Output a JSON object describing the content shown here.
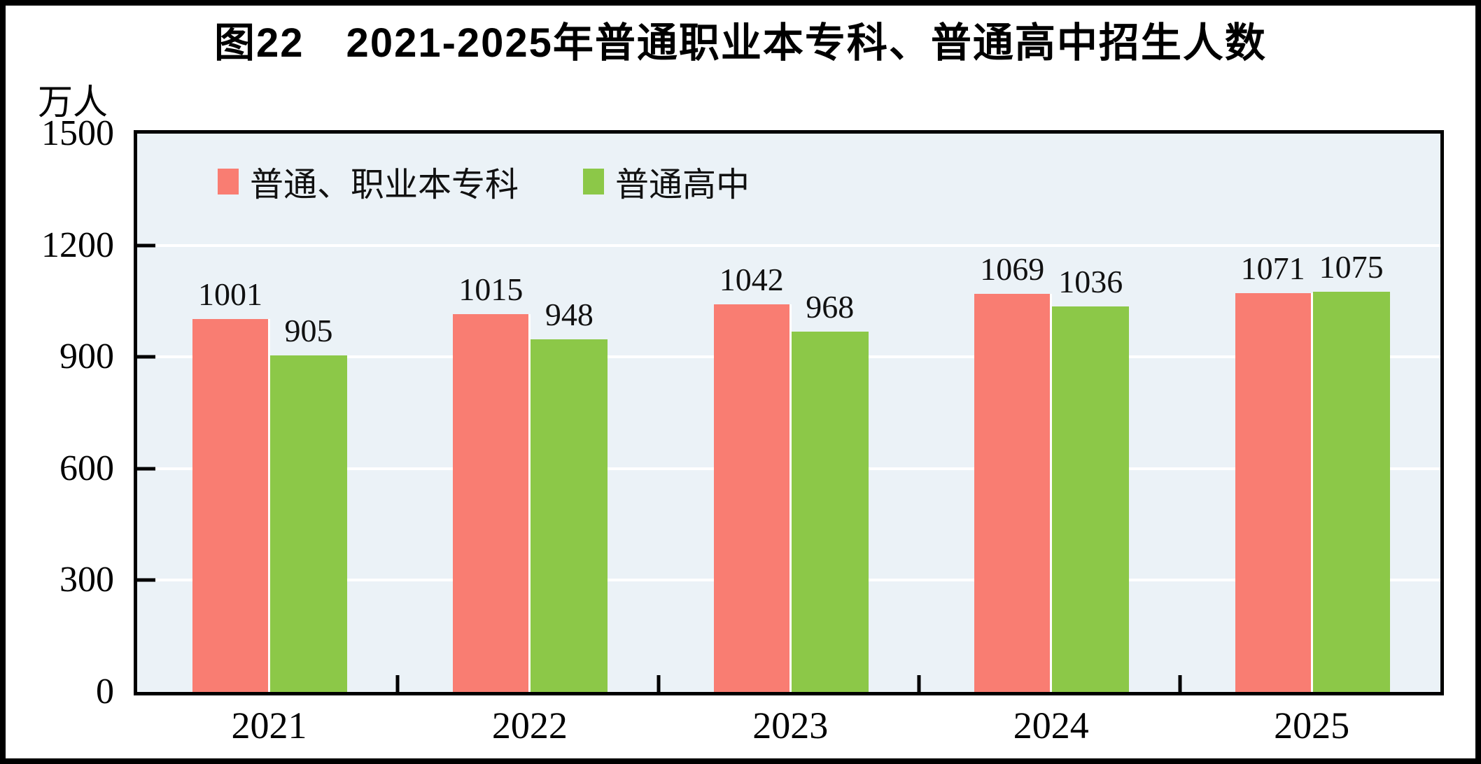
{
  "figure": {
    "title": "图22　2021-2025年普通职业本专科、普通高中招生人数",
    "unit_label": "万人"
  },
  "chart_data": {
    "type": "bar",
    "title": "图22　2021-2025年普通职业本专科、普通高中招生人数",
    "unit": "万人",
    "categories": [
      "2021",
      "2022",
      "2023",
      "2024",
      "2025"
    ],
    "series": [
      {
        "name": "普通、职业本专科",
        "color": "#f97d72",
        "values": [
          1001,
          1015,
          1042,
          1069,
          1071
        ]
      },
      {
        "name": "普通高中",
        "color": "#8cc848",
        "values": [
          905,
          948,
          968,
          1036,
          1075
        ]
      }
    ],
    "ylim": [
      0,
      1500
    ],
    "yticks": [
      0,
      300,
      600,
      900,
      1200,
      1500
    ],
    "grid": true,
    "gridline_color": "#ffffff",
    "plot_background": "#ebf2f7",
    "bar_separator_color": "#ffffff",
    "legend_position": "top-left",
    "value_labels": true
  }
}
